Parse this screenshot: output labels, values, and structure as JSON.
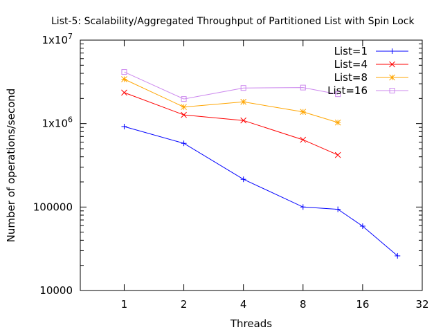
{
  "chart_data": {
    "type": "line",
    "title": "List-5: Scalability/Aggregated Throughput of Partitioned List with Spin Lock",
    "xlabel": "Threads",
    "ylabel": "Number of operations/second",
    "x_scale": "log2",
    "y_scale": "log10",
    "xlim": [
      0.6,
      32
    ],
    "ylim": [
      10000,
      10000000
    ],
    "x_ticks": [
      1,
      2,
      4,
      8,
      16,
      32
    ],
    "x_tick_labels": [
      "1",
      "2",
      "4",
      "8",
      "16",
      "32"
    ],
    "y_ticks": [
      10000,
      100000,
      1000000,
      10000000
    ],
    "y_tick_labels": [
      {
        "base": "10000",
        "exp": ""
      },
      {
        "base": "100000",
        "exp": ""
      },
      {
        "base": "1x10",
        "exp": "6"
      },
      {
        "base": "1x10",
        "exp": "7"
      }
    ],
    "grid": false,
    "legend_position": "top-right",
    "series": [
      {
        "name": "List=1",
        "color": "#0000ff",
        "marker": "plus",
        "x": [
          1,
          2,
          4,
          8,
          12,
          16,
          24
        ],
        "y": [
          920000,
          580000,
          215000,
          100000,
          94000,
          59000,
          26000
        ]
      },
      {
        "name": "List=4",
        "color": "#ff0000",
        "marker": "cross",
        "x": [
          1,
          2,
          4,
          8,
          12
        ],
        "y": [
          2350000,
          1270000,
          1090000,
          640000,
          420000
        ]
      },
      {
        "name": "List=8",
        "color": "#ffa500",
        "marker": "star",
        "x": [
          1,
          2,
          4,
          8,
          12
        ],
        "y": [
          3400000,
          1580000,
          1820000,
          1380000,
          1030000
        ]
      },
      {
        "name": "List=16",
        "color": "#cc88ee",
        "marker": "square",
        "x": [
          1,
          2,
          4,
          8,
          12
        ],
        "y": [
          4150000,
          1970000,
          2670000,
          2700000,
          2250000
        ]
      }
    ]
  }
}
